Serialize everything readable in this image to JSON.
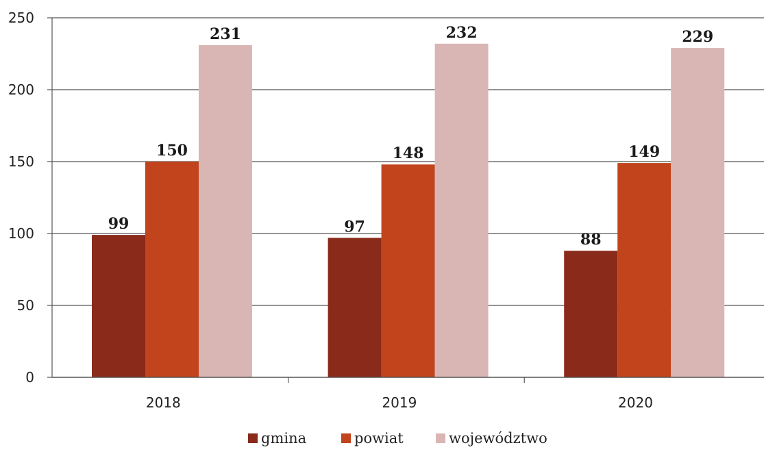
{
  "chart_data": {
    "type": "bar",
    "categories": [
      "2018",
      "2019",
      "2020"
    ],
    "series": [
      {
        "name": "gmina",
        "color": "#8a2a1a",
        "values": [
          99,
          97,
          88
        ]
      },
      {
        "name": "powiat",
        "color": "#c1441c",
        "values": [
          150,
          148,
          149
        ]
      },
      {
        "name": "województwo",
        "color": "#d9b6b4",
        "values": [
          231,
          232,
          229
        ]
      }
    ],
    "y_ticks": [
      "0",
      "50",
      "100",
      "150",
      "200",
      "250"
    ],
    "ylim": [
      0,
      250
    ],
    "grid": true,
    "legend_position": "bottom"
  }
}
